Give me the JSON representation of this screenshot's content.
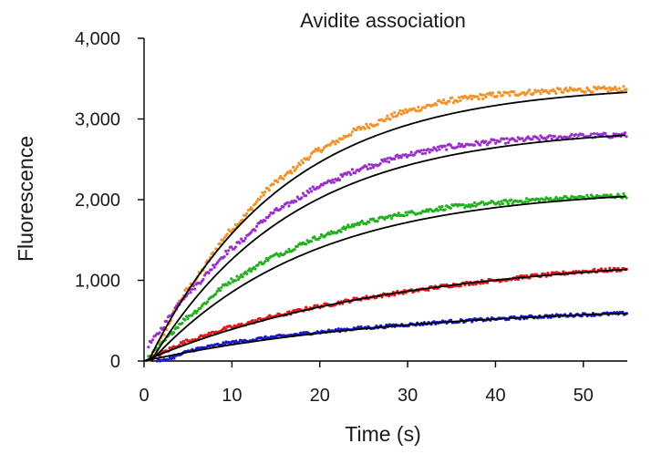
{
  "chart_data": {
    "type": "scatter",
    "title": "Avidite association",
    "xlabel": "Time (s)",
    "ylabel": "Fluorescence",
    "xlim": [
      0,
      55
    ],
    "ylim": [
      0,
      4000
    ],
    "x_ticks": [
      0,
      10,
      20,
      30,
      40,
      50
    ],
    "x_tick_labels": [
      "0",
      "10",
      "20",
      "30",
      "40",
      "50"
    ],
    "y_ticks": [
      0,
      1000,
      2000,
      3000,
      4000
    ],
    "y_tick_labels": [
      "0",
      "1,000",
      "2,000",
      "3,000",
      "4,000"
    ],
    "grid": false,
    "legend": "none",
    "fit_color": "#000000",
    "series": [
      {
        "color": "#f0932a",
        "plateau": 3430,
        "k": 0.065,
        "t0": 0.5,
        "start": 0.5,
        "points": [
          [
            0.5,
            0
          ],
          [
            5,
            900
          ],
          [
            10,
            1640
          ],
          [
            15,
            2220
          ],
          [
            20,
            2620
          ],
          [
            25,
            2900
          ],
          [
            30,
            3100
          ],
          [
            35,
            3230
          ],
          [
            40,
            3300
          ],
          [
            45,
            3340
          ],
          [
            50,
            3360
          ],
          [
            55,
            3370
          ]
        ]
      },
      {
        "color": "#9a2fc9",
        "plateau": 2900,
        "k": 0.062,
        "t0": 0.8,
        "start": 0.5,
        "points": [
          [
            0.5,
            200
          ],
          [
            5,
            850
          ],
          [
            10,
            1400
          ],
          [
            15,
            1860
          ],
          [
            20,
            2170
          ],
          [
            25,
            2400
          ],
          [
            30,
            2560
          ],
          [
            35,
            2660
          ],
          [
            40,
            2720
          ],
          [
            45,
            2760
          ],
          [
            50,
            2790
          ],
          [
            55,
            2800
          ]
        ]
      },
      {
        "color": "#22b01e",
        "plateau": 2150,
        "k": 0.055,
        "t0": 0.8,
        "start": 0.5,
        "points": [
          [
            0.5,
            50
          ],
          [
            5,
            550
          ],
          [
            10,
            1000
          ],
          [
            15,
            1310
          ],
          [
            20,
            1540
          ],
          [
            25,
            1720
          ],
          [
            30,
            1830
          ],
          [
            35,
            1910
          ],
          [
            40,
            1960
          ],
          [
            45,
            2000
          ],
          [
            50,
            2030
          ],
          [
            55,
            2050
          ]
        ]
      },
      {
        "color": "#e01818",
        "plateau": 1330,
        "k": 0.035,
        "t0": 0,
        "start": 1.0,
        "points": [
          [
            1,
            50
          ],
          [
            5,
            250
          ],
          [
            10,
            420
          ],
          [
            15,
            560
          ],
          [
            20,
            680
          ],
          [
            25,
            780
          ],
          [
            30,
            860
          ],
          [
            35,
            940
          ],
          [
            40,
            1000
          ],
          [
            45,
            1060
          ],
          [
            50,
            1110
          ],
          [
            55,
            1140
          ]
        ]
      },
      {
        "color": "#1a1ac8",
        "plateau": 700,
        "k": 0.034,
        "t0": 0,
        "start": 1.5,
        "points": [
          [
            2,
            0
          ],
          [
            6,
            150
          ],
          [
            10,
            230
          ],
          [
            15,
            300
          ],
          [
            20,
            360
          ],
          [
            25,
            410
          ],
          [
            30,
            450
          ],
          [
            35,
            490
          ],
          [
            40,
            520
          ],
          [
            45,
            550
          ],
          [
            50,
            575
          ],
          [
            55,
            590
          ]
        ]
      }
    ]
  }
}
